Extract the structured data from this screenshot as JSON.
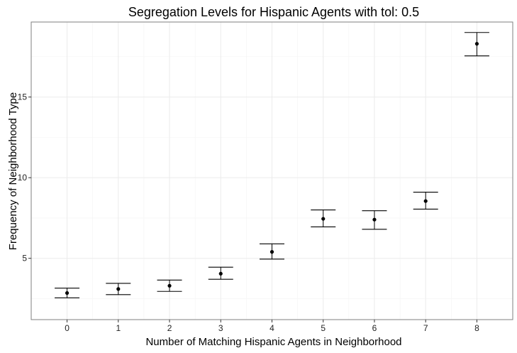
{
  "chart_data": {
    "type": "scatter",
    "title": "Segregation Levels for Hispanic Agents with tol: 0.5",
    "xlabel": "Number of Matching Hispanic Agents in Neighborhood",
    "ylabel": "Frequency of Neighborhood Type",
    "x": [
      0,
      1,
      2,
      3,
      4,
      5,
      6,
      7,
      8
    ],
    "x_ticks": [
      "0",
      "1",
      "2",
      "3",
      "4",
      "5",
      "6",
      "7",
      "8"
    ],
    "y_ticks": [
      "5",
      "10",
      "15"
    ],
    "y": [
      2.85,
      3.1,
      3.3,
      4.05,
      5.4,
      7.45,
      7.4,
      8.55,
      18.3
    ],
    "error_low": [
      2.55,
      2.75,
      2.95,
      3.7,
      4.95,
      6.95,
      6.8,
      8.05,
      17.55
    ],
    "error_high": [
      3.15,
      3.45,
      3.65,
      4.45,
      5.9,
      8.0,
      7.95,
      9.1,
      19.0
    ],
    "xlim": [
      -0.7,
      8.7
    ],
    "ylim": [
      1.2,
      19.65
    ],
    "grid": true,
    "theme": "ggplot2 theme_bw",
    "colors": {
      "point": "#000000",
      "errorbar": "#000000",
      "grid_major": "#ebebeb",
      "grid_minor": "#f4f4f4",
      "panel_border": "#7f7f7f",
      "axis_tick": "#333333"
    }
  }
}
